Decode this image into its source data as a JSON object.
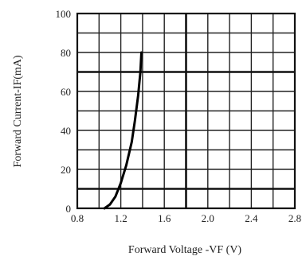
{
  "chart_data": {
    "type": "line",
    "xlabel": "Forward Voltage -VF (V)",
    "ylabel": "Forward Current-IF(mA)",
    "xlim": [
      0.8,
      2.8
    ],
    "ylim": [
      0,
      100
    ],
    "x_ticks": [
      "0.8",
      "1.2",
      "1.6",
      "2.0",
      "2.4",
      "2.8"
    ],
    "y_ticks": [
      "0",
      "20",
      "40",
      "60",
      "80",
      "100"
    ],
    "x_tick_values": [
      0.8,
      1.2,
      1.6,
      2.0,
      2.4,
      2.8
    ],
    "y_tick_values": [
      0,
      20,
      40,
      60,
      80,
      100
    ],
    "grid": true,
    "series": [
      {
        "x": [
          1.05,
          1.1,
          1.15,
          1.2,
          1.25,
          1.3,
          1.33,
          1.36,
          1.38,
          1.39
        ],
        "y": [
          0,
          2,
          6,
          13,
          22,
          34,
          45,
          58,
          70,
          80
        ]
      }
    ]
  }
}
